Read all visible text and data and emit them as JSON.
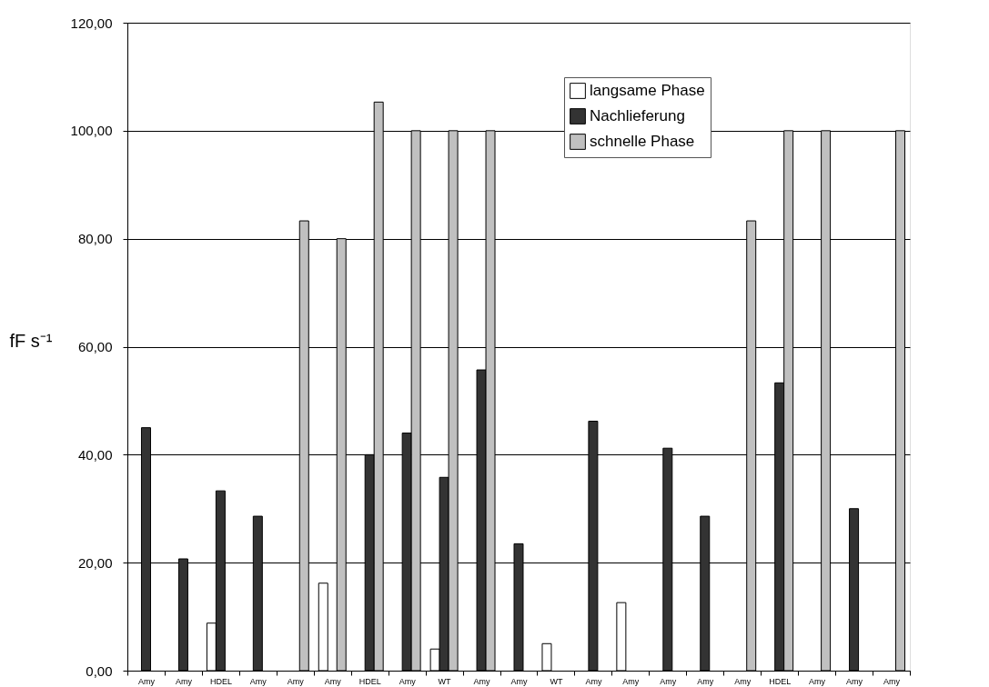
{
  "chart_data": {
    "type": "bar",
    "ylabel": "fF s⁻¹",
    "categories": [
      "Amy",
      "Amy",
      "HDEL",
      "Amy",
      "Amy",
      "Amy",
      "HDEL",
      "Amy",
      "WT",
      "Amy",
      "Amy",
      "WT",
      "Amy",
      "Amy",
      "Amy",
      "Amy",
      "Amy",
      "HDEL",
      "Amy",
      "Amy",
      "Amy"
    ],
    "series": [
      {
        "name": "langsame Phase",
        "color": "#ffffff",
        "values": [
          null,
          null,
          8.8,
          null,
          null,
          16.2,
          null,
          null,
          4.0,
          null,
          null,
          5.0,
          null,
          12.6,
          null,
          null,
          null,
          null,
          null,
          null,
          null
        ]
      },
      {
        "name": "Nachlieferung",
        "color": "#333333",
        "values": [
          45.0,
          20.7,
          33.3,
          28.6,
          null,
          null,
          40.0,
          44.0,
          35.8,
          55.7,
          23.5,
          null,
          46.2,
          null,
          41.2,
          28.6,
          null,
          53.3,
          null,
          30.0,
          null
        ]
      },
      {
        "name": "schnelle Phase",
        "color": "#c0c0c0",
        "values": [
          null,
          null,
          null,
          null,
          83.3,
          80.0,
          105.3,
          100.0,
          100.0,
          100.0,
          null,
          null,
          null,
          null,
          null,
          null,
          83.3,
          100.0,
          100.0,
          null,
          100.0
        ]
      }
    ],
    "ylim": [
      0,
      120
    ],
    "yticks": [
      {
        "value": 0,
        "label": "0,00"
      },
      {
        "value": 20,
        "label": "20,00"
      },
      {
        "value": 40,
        "label": "40,00"
      },
      {
        "value": 60,
        "label": "60,00"
      },
      {
        "value": 80,
        "label": "80,00"
      },
      {
        "value": 100,
        "label": "100,00"
      },
      {
        "value": 120,
        "label": "120,00"
      }
    ],
    "grid": "y",
    "legend": "top right"
  }
}
